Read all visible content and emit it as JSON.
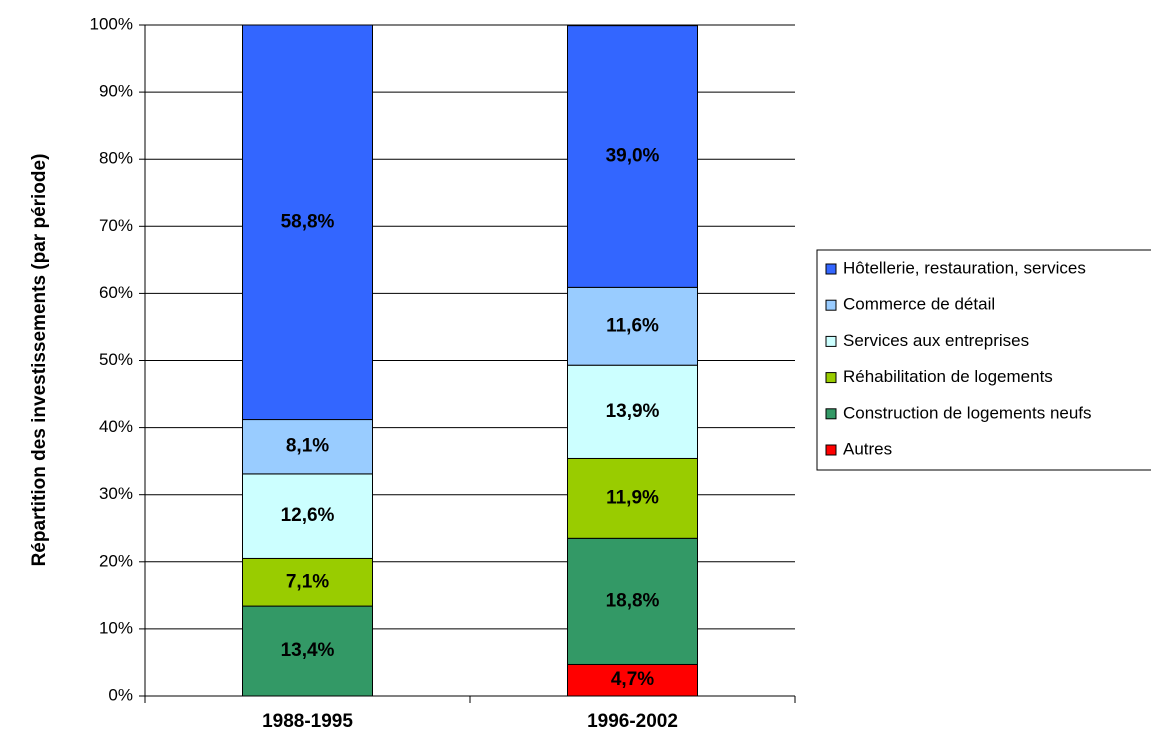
{
  "chart_data": {
    "type": "stacked_bar",
    "y_label": "Répartition des investissements (par période)",
    "categories": [
      "1988-1995",
      "1996-2002"
    ],
    "series": [
      {
        "name": "Hôtellerie, restauration, services",
        "color": "#3366ff",
        "values": [
          58.8,
          39.0
        ],
        "value_labels": [
          "58,8%",
          "39,0%"
        ]
      },
      {
        "name": "Commerce de détail",
        "color": "#99ccff",
        "values": [
          8.1,
          11.6
        ],
        "value_labels": [
          "8,1%",
          "11,6%"
        ]
      },
      {
        "name": "Services aux entreprises",
        "color": "#ccffff",
        "values": [
          12.6,
          13.9
        ],
        "value_labels": [
          "12,6%",
          "13,9%"
        ]
      },
      {
        "name": "Réhabilitation de logements",
        "color": "#99cc00",
        "values": [
          7.1,
          11.9
        ],
        "value_labels": [
          "7,1%",
          "11,9%"
        ]
      },
      {
        "name": "Construction de logements neufs",
        "color": "#339966",
        "values": [
          13.4,
          18.8
        ],
        "value_labels": [
          "13,4%",
          "18,8%"
        ]
      },
      {
        "name": "Autres",
        "color": "#ff0000",
        "values": [
          0,
          4.7
        ],
        "value_labels": [
          null,
          "4,7%"
        ]
      }
    ],
    "ylim": [
      0,
      100
    ],
    "yticks": [
      {
        "value": 0,
        "label": "0%"
      },
      {
        "value": 10,
        "label": "10%"
      },
      {
        "value": 20,
        "label": "20%"
      },
      {
        "value": 30,
        "label": "30%"
      },
      {
        "value": 40,
        "label": "40%"
      },
      {
        "value": 50,
        "label": "50%"
      },
      {
        "value": 60,
        "label": "60%"
      },
      {
        "value": 70,
        "label": "70%"
      },
      {
        "value": 80,
        "label": "80%"
      },
      {
        "value": 90,
        "label": "90%"
      },
      {
        "value": 100,
        "label": "100%"
      }
    ],
    "grid": true,
    "legend": "right"
  }
}
